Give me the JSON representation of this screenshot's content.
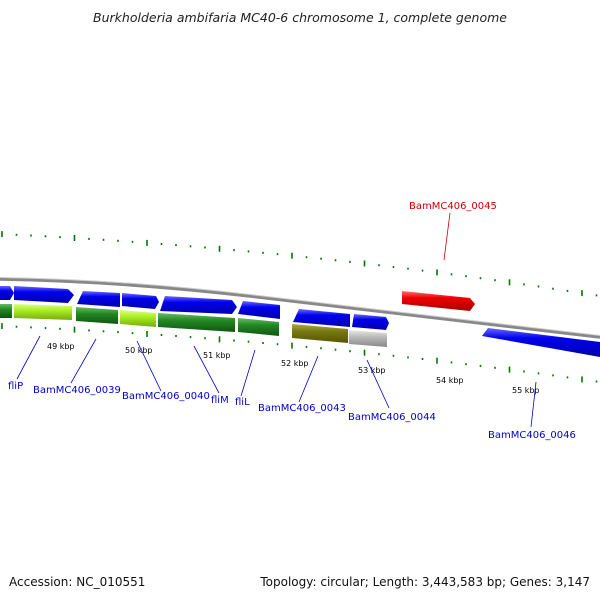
{
  "title": "Burkholderia ambifaria MC40-6 chromosome 1, complete genome",
  "footer": {
    "accession": "Accession: NC_010551",
    "summary": "Topology: circular; Length: 3,443,583 bp; Genes: 3,147"
  },
  "ruler_labels": [
    "49 kbp",
    "50 kbp",
    "51 kbp",
    "52 kbp",
    "53 kbp",
    "54 kbp",
    "55 kbp"
  ],
  "gene_labels": [
    {
      "text": "fliP",
      "color": "#0000cc"
    },
    {
      "text": "BamMC406_0039",
      "color": "#0000cc"
    },
    {
      "text": "BamMC406_0040",
      "color": "#0000cc"
    },
    {
      "text": "fliM",
      "color": "#0000cc"
    },
    {
      "text": "fliL",
      "color": "#0000cc"
    },
    {
      "text": "BamMC406_0043",
      "color": "#0000cc"
    },
    {
      "text": "BamMC406_0044",
      "color": "#0000cc"
    },
    {
      "text": "BamMC406_0045",
      "color": "#cc0000"
    },
    {
      "text": "BamMC406_0046",
      "color": "#0000cc"
    }
  ],
  "colors": {
    "cds_forward": "#0000ee",
    "cds_reverse": "#0000ee",
    "highlight_gene": "#ee0000",
    "cog_light_green": "#aaee22",
    "cog_dark_green": "#228822",
    "cog_olive": "#777711",
    "cog_gray": "#bbbbbb",
    "tick_green": "#007700"
  }
}
